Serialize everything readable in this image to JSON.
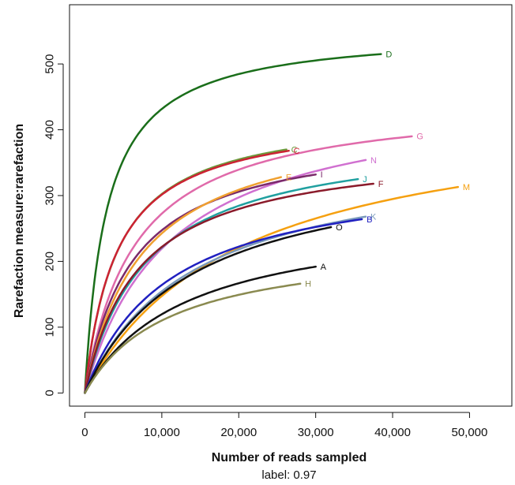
{
  "chart_data": {
    "type": "line",
    "title": "",
    "xlabel": "Number of reads sampled",
    "ylabel": "Rarefaction measure:rarefaction",
    "caption": "label: 0.97",
    "xlim": [
      -2000,
      55500
    ],
    "ylim": [
      -20,
      590
    ],
    "xticks": [
      0,
      10000,
      20000,
      30000,
      40000,
      50000
    ],
    "xtick_labels": [
      "0",
      "10,000",
      "20,000",
      "30,000",
      "40,000",
      "50,000"
    ],
    "yticks": [
      0,
      100,
      200,
      300,
      400,
      500
    ],
    "ytick_labels": [
      "0",
      "100",
      "200",
      "300",
      "400",
      "500"
    ],
    "grid": false,
    "series": [
      {
        "name": "D",
        "color": "#1a6e1a",
        "x_end": 38500,
        "y_end": 515,
        "k": 2800
      },
      {
        "name": "G",
        "color": "#e06aaa",
        "x_end": 42500,
        "y_end": 390,
        "k": 6500
      },
      {
        "name": "C",
        "color": "#6c9a3c",
        "x_end": 26200,
        "y_end": 370,
        "k": 4200
      },
      {
        "name": "C",
        "color": "#cc2233",
        "x_end": 26500,
        "y_end": 368,
        "k": 4100
      },
      {
        "name": "N",
        "color": "#d070d0",
        "x_end": 36500,
        "y_end": 354,
        "k": 11000
      },
      {
        "name": "I",
        "color": "#7a2a6a",
        "x_end": 30000,
        "y_end": 332,
        "k": 6200
      },
      {
        "name": "E",
        "color": "#f0a030",
        "x_end": 25500,
        "y_end": 328,
        "k": 7500
      },
      {
        "name": "J",
        "color": "#20a0a0",
        "x_end": 35500,
        "y_end": 325,
        "k": 8000
      },
      {
        "name": "F",
        "color": "#8a1a2a",
        "x_end": 37500,
        "y_end": 318,
        "k": 7000
      },
      {
        "name": "M",
        "color": "#f5a010",
        "x_end": 48500,
        "y_end": 313,
        "k": 20000
      },
      {
        "name": "K",
        "color": "#7a9abb",
        "x_end": 36500,
        "y_end": 268,
        "k": 14000
      },
      {
        "name": "B",
        "color": "#2020c0",
        "x_end": 36000,
        "y_end": 264,
        "k": 11000
      },
      {
        "name": "O",
        "color": "#111111",
        "x_end": 32000,
        "y_end": 252,
        "k": 14000
      },
      {
        "name": "A",
        "color": "#111111",
        "x_end": 30000,
        "y_end": 192,
        "k": 13000
      },
      {
        "name": "H",
        "color": "#8a8a50",
        "x_end": 28000,
        "y_end": 166,
        "k": 11000
      }
    ]
  }
}
